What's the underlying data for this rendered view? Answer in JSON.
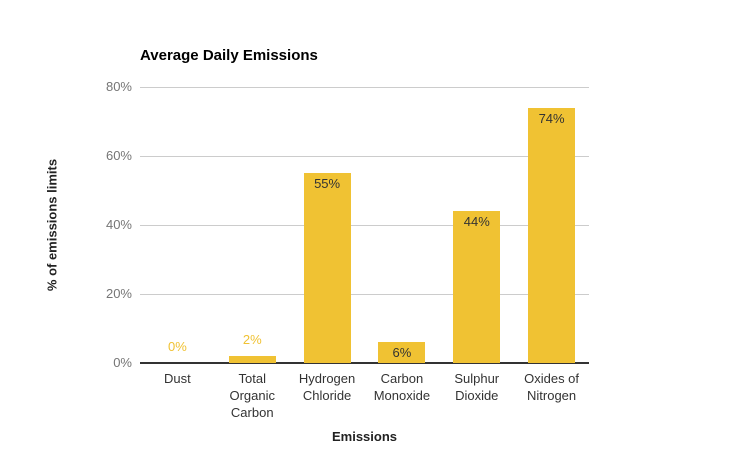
{
  "chart_data": {
    "type": "bar",
    "title": "Average Daily Emissions",
    "xlabel": "Emissions",
    "ylabel": "% of emissions limits",
    "categories": [
      "Dust",
      "Total Organic Carbon",
      "Hydrogen Chloride",
      "Carbon Monoxide",
      "Sulphur Dioxide",
      "Oxides of Nitrogen"
    ],
    "categories_wrapped": [
      [
        "Dust"
      ],
      [
        "Total",
        "Organic",
        "Carbon"
      ],
      [
        "Hydrogen",
        "Chloride"
      ],
      [
        "Carbon",
        "Monoxide"
      ],
      [
        "Sulphur",
        "Dioxide"
      ],
      [
        "Oxides of",
        "Nitrogen"
      ]
    ],
    "values": [
      0,
      2,
      55,
      6,
      44,
      74
    ],
    "value_labels": [
      "0%",
      "2%",
      "55%",
      "6%",
      "44%",
      "74%"
    ],
    "ylim": [
      0,
      80
    ],
    "yticks": [
      0,
      20,
      40,
      60,
      80
    ],
    "ytick_labels": [
      "0%",
      "20%",
      "40%",
      "60%",
      "80%"
    ],
    "grid": true,
    "legend": "none",
    "colors": {
      "bar": "#F0C233",
      "value_label_inside": "#333333",
      "value_label_outside": "#F0C233",
      "gridline": "#cccccc",
      "baseline": "#333333",
      "ytick_text": "#757575",
      "xtick_text": "#333333",
      "title_text": "#000000",
      "axis_title_text": "#222222",
      "background": "#ffffff"
    }
  }
}
